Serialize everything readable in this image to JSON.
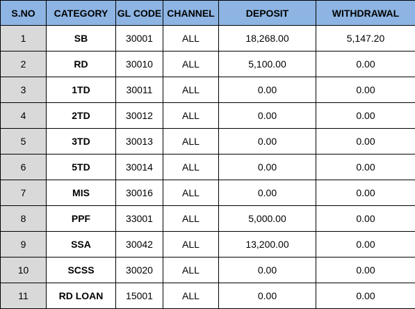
{
  "table": {
    "headers": [
      "S.NO",
      "CATEGORY",
      "GL CODE",
      "CHANNEL",
      "DEPOSIT",
      "WITHDRAWAL"
    ],
    "rows": [
      [
        "1",
        "SB",
        "30001",
        "ALL",
        "18,268.00",
        "5,147.20"
      ],
      [
        "2",
        "RD",
        "30010",
        "ALL",
        "5,100.00",
        "0.00"
      ],
      [
        "3",
        "1TD",
        "30011",
        "ALL",
        "0.00",
        "0.00"
      ],
      [
        "4",
        "2TD",
        "30012",
        "ALL",
        "0.00",
        "0.00"
      ],
      [
        "5",
        "3TD",
        "30013",
        "ALL",
        "0.00",
        "0.00"
      ],
      [
        "6",
        "5TD",
        "30014",
        "ALL",
        "0.00",
        "0.00"
      ],
      [
        "7",
        "MIS",
        "30016",
        "ALL",
        "0.00",
        "0.00"
      ],
      [
        "8",
        "PPF",
        "33001",
        "ALL",
        "5,000.00",
        "0.00"
      ],
      [
        "9",
        "SSA",
        "30042",
        "ALL",
        "13,200.00",
        "0.00"
      ],
      [
        "10",
        "SCSS",
        "30020",
        "ALL",
        "0.00",
        "0.00"
      ],
      [
        "11",
        "RD LOAN",
        "15001",
        "ALL",
        "0.00",
        "0.00"
      ]
    ]
  },
  "colors": {
    "header_background": "#8db4e2",
    "sno_background": "#d9d9d9",
    "border": "#000000"
  }
}
